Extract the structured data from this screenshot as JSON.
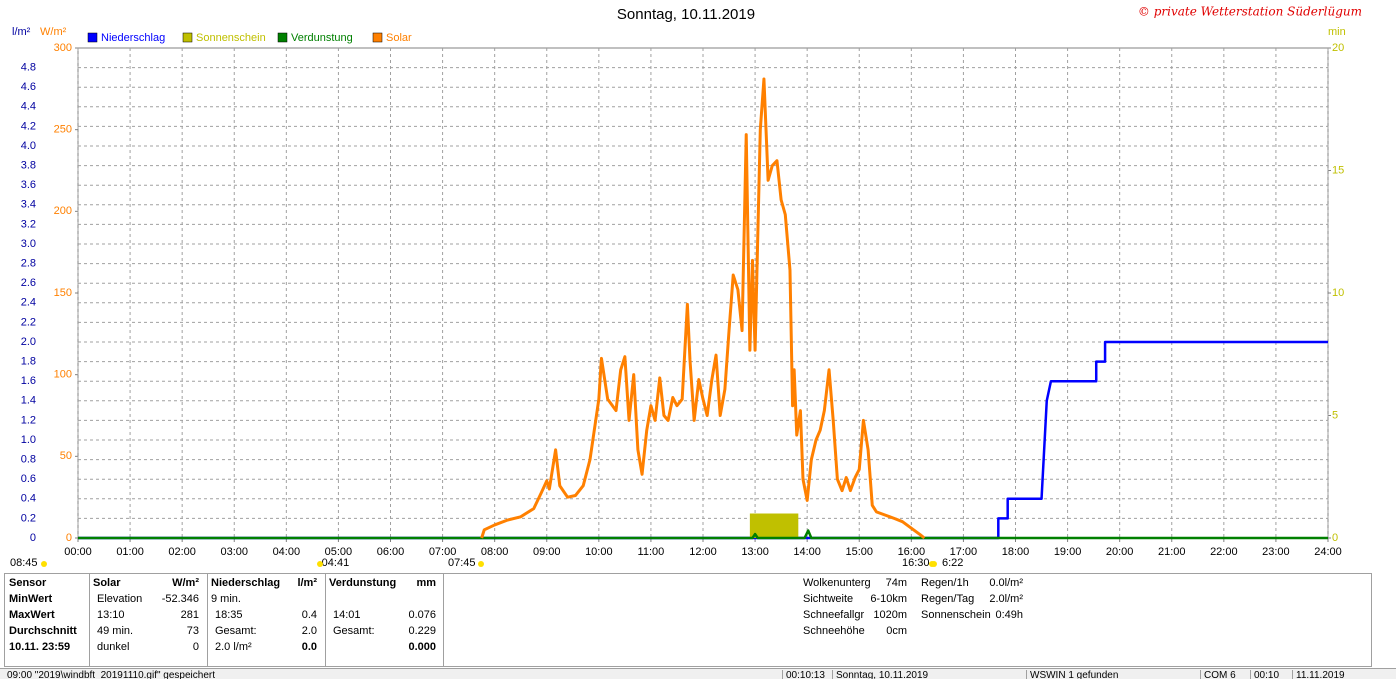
{
  "chart_data": {
    "type": "line",
    "title": "Sonntag, 10.11.2019",
    "subtitle": "© private Wetterstation Süderlügum",
    "y_unit": "l/m²",
    "y2_unit": "W/m²",
    "y3_unit": "min",
    "xlim": [
      0,
      24
    ],
    "xticks": [
      {
        "value": 0,
        "label": "00:00"
      },
      {
        "value": 1,
        "label": "01:00"
      },
      {
        "value": 2,
        "label": "02:00"
      },
      {
        "value": 3,
        "label": "03:00"
      },
      {
        "value": 4,
        "label": "04:00"
      },
      {
        "value": 5,
        "label": "05:00"
      },
      {
        "value": 6,
        "label": "06:00"
      },
      {
        "value": 7,
        "label": "07:00"
      },
      {
        "value": 8,
        "label": "08:00"
      },
      {
        "value": 9,
        "label": "09:00"
      },
      {
        "value": 10,
        "label": "10:00"
      },
      {
        "value": 11,
        "label": "11:00"
      },
      {
        "value": 12,
        "label": "12:00"
      },
      {
        "value": 13,
        "label": "13:00"
      },
      {
        "value": 14,
        "label": "14:00"
      },
      {
        "value": 15,
        "label": "15:00"
      },
      {
        "value": 16,
        "label": "16:00"
      },
      {
        "value": 17,
        "label": "17:00"
      },
      {
        "value": 18,
        "label": "18:00"
      },
      {
        "value": 19,
        "label": "19:00"
      },
      {
        "value": 20,
        "label": "20:00"
      },
      {
        "value": 21,
        "label": "21:00"
      },
      {
        "value": 22,
        "label": "22:00"
      },
      {
        "value": 23,
        "label": "23:00"
      },
      {
        "value": 24,
        "label": "24:00"
      }
    ],
    "ylim": [
      0,
      5
    ],
    "yticks": [
      0,
      0.2,
      0.4,
      0.6,
      0.8,
      {
        "value": 1,
        "label": "1.0"
      },
      1.2,
      1.4,
      1.6,
      1.8,
      {
        "value": 2,
        "label": "2.0"
      },
      2.2,
      2.4,
      2.6,
      2.8,
      {
        "value": 3,
        "label": "3.0"
      },
      3.2,
      3.4,
      3.6,
      3.8,
      {
        "value": 4,
        "label": "4.0"
      },
      4.2,
      4.4,
      4.6,
      4.8
    ],
    "y2lim": [
      0,
      300
    ],
    "y2ticks": [
      0,
      50,
      100,
      150,
      200,
      250,
      300
    ],
    "y3lim": [
      0,
      20
    ],
    "y3ticks": [
      0,
      5,
      10,
      15,
      20
    ],
    "grid": true,
    "legend": "top-left",
    "axis_colors": {
      "y": "#0000a0",
      "y2": "#ff8000",
      "y3": "#c0c000"
    },
    "series": [
      {
        "name": "Niederschlag",
        "color": "#0000ff",
        "axis": "y",
        "x": [
          0,
          17.67,
          17.67,
          17.85,
          17.85,
          18.5,
          18.58,
          18.6,
          18.68,
          19.55,
          19.55,
          19.72,
          19.72,
          24
        ],
        "values": [
          0,
          0,
          0.2,
          0.2,
          0.4,
          0.4,
          1.2,
          1.4,
          1.6,
          1.6,
          1.8,
          1.8,
          2.0,
          2.0
        ]
      },
      {
        "name": "Sonnenschein",
        "color": "#c0c000",
        "axis": "y3",
        "bins": [
          12.9,
          13.83
        ],
        "values": [
          1
        ]
      },
      {
        "name": "Verdunstung",
        "color": "#008000",
        "axis": "y",
        "x": [
          0,
          12.95,
          13,
          13.05,
          13.95,
          14.02,
          14.08,
          24
        ],
        "values": [
          0,
          0,
          0.04,
          0,
          0,
          0.076,
          0,
          0
        ]
      },
      {
        "name": "Solar",
        "color": "#ff8000",
        "axis": "y2",
        "x": [
          7.75,
          7.8,
          8,
          8.25,
          8.5,
          8.75,
          8.9,
          9,
          9.05,
          9.17,
          9.25,
          9.4,
          9.55,
          9.7,
          9.83,
          10,
          10.05,
          10.17,
          10.33,
          10.42,
          10.5,
          10.58,
          10.67,
          10.75,
          10.83,
          10.92,
          11,
          11.08,
          11.17,
          11.25,
          11.33,
          11.42,
          11.5,
          11.6,
          11.7,
          11.75,
          11.83,
          11.92,
          12,
          12.08,
          12.17,
          12.25,
          12.33,
          12.42,
          12.5,
          12.58,
          12.67,
          12.75,
          12.83,
          12.9,
          12.95,
          13,
          13.1,
          13.17,
          13.25,
          13.33,
          13.42,
          13.5,
          13.58,
          13.67,
          13.72,
          13.75,
          13.8,
          13.87,
          13.92,
          14,
          14.08,
          14.17,
          14.25,
          14.33,
          14.42,
          14.5,
          14.58,
          14.67,
          14.75,
          14.83,
          14.92,
          15,
          15.08,
          15.17,
          15.25,
          15.33,
          15.5,
          15.67,
          15.83,
          16,
          16.17,
          16.25
        ],
        "values": [
          0,
          5,
          8,
          11,
          13,
          18,
          28,
          35,
          30,
          54,
          32,
          25,
          26,
          32,
          48,
          85,
          110,
          85,
          78,
          103,
          111,
          72,
          100,
          54,
          39,
          66,
          81,
          72,
          98,
          75,
          72,
          86,
          81,
          85,
          143,
          109,
          72,
          97,
          85,
          75,
          97,
          112,
          75,
          91,
          127,
          161,
          152,
          127,
          247,
          115,
          170,
          115,
          250,
          281,
          219,
          228,
          231,
          207,
          198,
          164,
          81,
          103,
          63,
          78,
          36,
          23,
          48,
          60,
          66,
          78,
          103,
          72,
          36,
          29,
          37,
          29,
          37,
          42,
          72,
          54,
          20,
          16,
          14,
          12,
          10,
          6,
          2,
          0
        ]
      }
    ],
    "annotations": [
      "08:45",
      "-04:41",
      "07:45",
      "16:30",
      "6:22"
    ]
  },
  "summary": {
    "labels": [
      "Sensor",
      "MinWert",
      "MaxWert",
      "Durchschnitt",
      "10.11. 23:59"
    ],
    "columns": [
      {
        "header": {
          "left": "Solar",
          "right": "W/m²"
        },
        "rows": [
          {
            "left": "Elevation",
            "right": "-52.346"
          },
          {
            "left": "13:10",
            "right": "281"
          },
          {
            "left": "49 min.",
            "right": "73"
          },
          {
            "left": "dunkel",
            "right": "0"
          }
        ]
      },
      {
        "header": {
          "left": "Niederschlag",
          "right": "l/m²"
        },
        "rows": [
          {
            "left": "9 min."
          },
          {
            "left": "18:35",
            "right": "0.4"
          },
          {
            "left": "Gesamt:",
            "right": "2.0"
          },
          {
            "left": "2.0 l/m²",
            "right": "0.0"
          }
        ]
      },
      {
        "header": {
          "left": "Verdunstung",
          "right": "mm"
        },
        "rows": [
          {},
          {
            "left": "14:01",
            "right": "0.076"
          },
          {
            "left": "Gesamt:",
            "right": "0.229"
          },
          {
            "right": "0.000"
          }
        ]
      }
    ],
    "info": [
      {
        "left": "Wolkenunterg",
        "right": "74m"
      },
      {
        "left": "Sichtweite",
        "right": "6-10km"
      },
      {
        "left": "Schneefallgr",
        "right": "1020m"
      },
      {
        "left": "Schneehöhe",
        "right": "0cm"
      }
    ],
    "info2": [
      {
        "left": "Regen/1h",
        "right": "0.0l/m²"
      },
      {
        "left": "Regen/Tag",
        "right": "2.0l/m²"
      },
      {
        "left": "Sonnenschein",
        "right": "0:49h"
      }
    ]
  },
  "status_bar": [
    "09:00  \"2019\\windbft_20191110.gif\" gespeichert",
    "00:10:13",
    "Sonntag, 10.11.2019",
    "WSWIN 1 gefunden",
    "COM 6",
    "00:10",
    "11.11.2019"
  ]
}
